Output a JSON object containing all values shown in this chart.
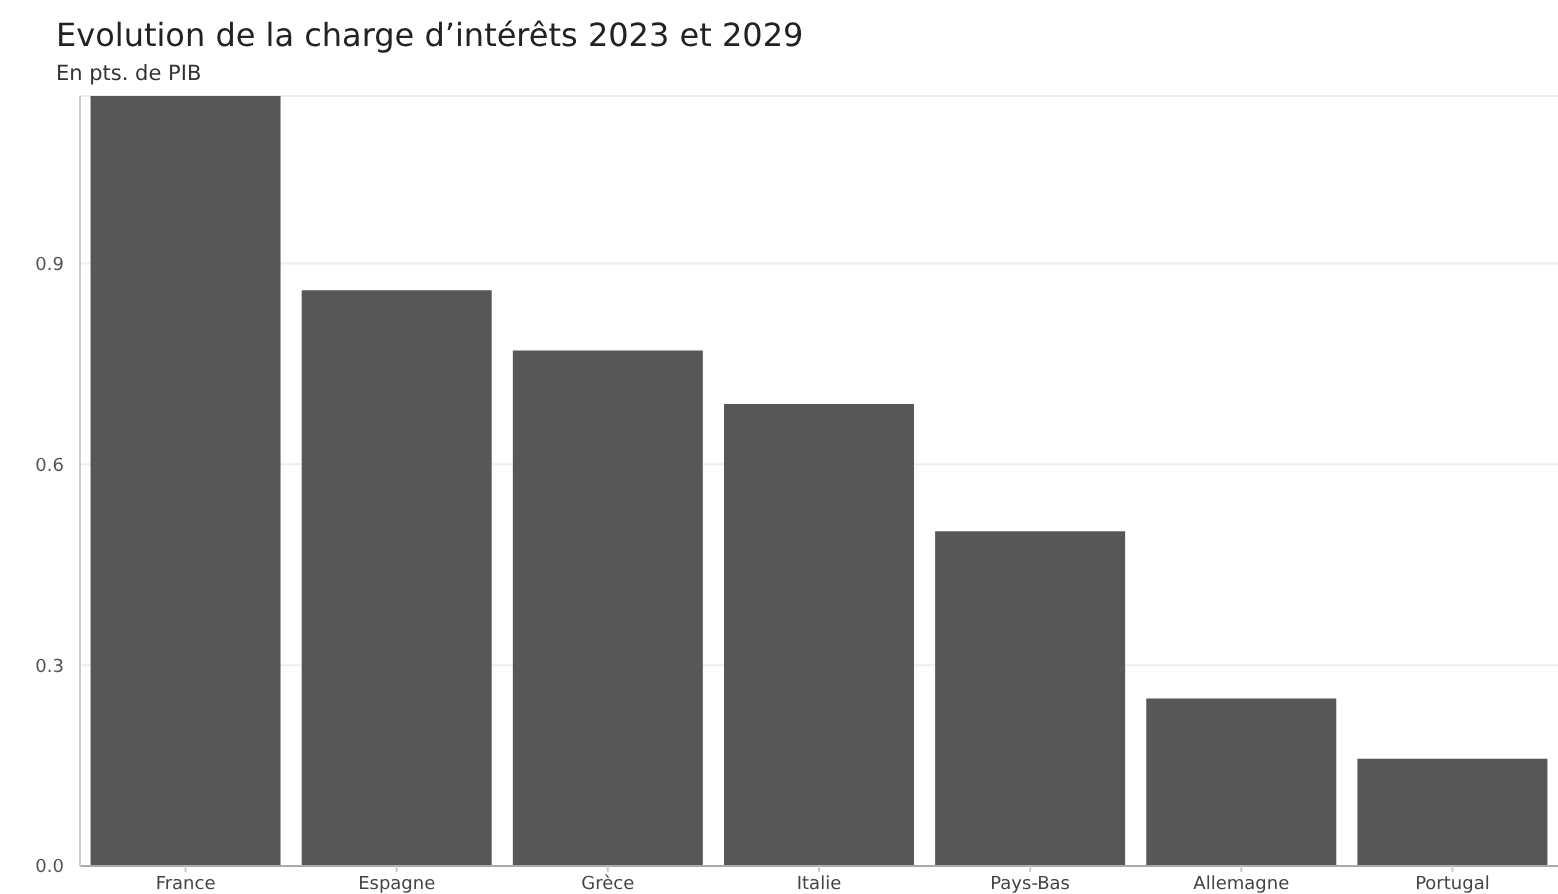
{
  "chart_data": {
    "type": "bar",
    "title": "Evolution de la charge d’intérêts 2023 et 2029",
    "subtitle": "En pts. de PIB",
    "categories": [
      "France",
      "Espagne",
      "Grèce",
      "Italie",
      "Pays-Bas",
      "Allemagne",
      "Portugal"
    ],
    "values": [
      1.15,
      0.86,
      0.77,
      0.69,
      0.5,
      0.25,
      0.16
    ],
    "color": "#575757",
    "ylim": [
      0,
      1.15
    ],
    "yticks": [
      {
        "value": 0,
        "label": "0.0"
      },
      0.3,
      0.6,
      0.9
    ],
    "grid": "y"
  }
}
